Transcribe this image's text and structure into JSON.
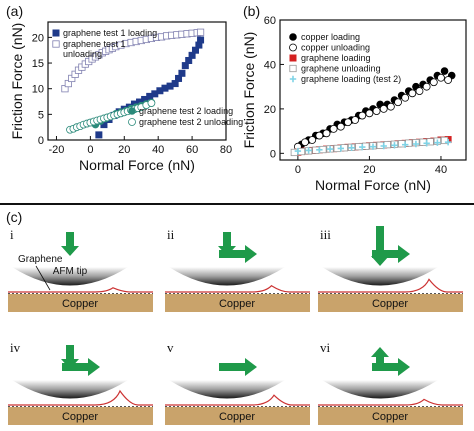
{
  "panel_labels": {
    "a": "(a)",
    "b": "(b)",
    "c": "(c)"
  },
  "colors": {
    "graphene_t1_fill": "#1f3a8a",
    "graphene_t1_open": "#8080b0",
    "graphene_t2_fill": "#2a8a7a",
    "graphene_t2_open": "#2a8a7a",
    "copper": "#000000",
    "graphene_red": "#d42020",
    "graphene_test2_cyan": "#7fd3e6",
    "arrow_green": "#1f9a4a",
    "copper_block": "#c9a36b",
    "graphene_line": "#cc3333"
  },
  "chart_data": [
    {
      "type": "scatter",
      "panel": "a",
      "xlabel": "Normal Force (nN)",
      "ylabel": "Friction Force (nN)",
      "xlim": [
        -25,
        80
      ],
      "ylim": [
        0,
        23
      ],
      "xticks": [
        "-20",
        "0",
        "20",
        "40",
        "60",
        "80"
      ],
      "yticks": [
        "0",
        "5",
        "10",
        "15",
        "20"
      ],
      "legend_top": [
        "graphene test 1 loading",
        "graphene test 1",
        "unloading"
      ],
      "legend_bottom": [
        "graphene test 2 loading",
        "graphene test 2 unloading"
      ],
      "series": [
        {
          "name": "graphene test 1 loading",
          "marker": "square-filled",
          "x": [
            5,
            8,
            11,
            14,
            17,
            20,
            23,
            26,
            29,
            32,
            35,
            38,
            41,
            44,
            47,
            50,
            52,
            54,
            56,
            58,
            60,
            62,
            64,
            65
          ],
          "y": [
            1,
            3,
            4,
            4.8,
            5.5,
            6,
            6.4,
            7,
            7.4,
            7.9,
            8.5,
            9,
            9.6,
            10.1,
            10.5,
            11,
            12,
            13,
            14.5,
            15.5,
            16.5,
            17.5,
            18.5,
            19.5
          ]
        },
        {
          "name": "graphene test 1 unloading",
          "marker": "square-open",
          "x": [
            -15,
            -13,
            -11,
            -9,
            -7,
            -5,
            -3,
            -1,
            1,
            3,
            5,
            7,
            9,
            11,
            13,
            15,
            18,
            21,
            24,
            27,
            30,
            33,
            36,
            39,
            42,
            45,
            48,
            51,
            54,
            57,
            60,
            63,
            65
          ],
          "y": [
            10,
            11,
            12,
            12.8,
            13.6,
            14.2,
            14.8,
            15.3,
            15.8,
            16.2,
            16.6,
            17,
            17.3,
            17.6,
            17.9,
            18.2,
            18.5,
            18.8,
            19,
            19.2,
            19.4,
            19.6,
            19.8,
            20,
            20.1,
            20.3,
            20.4,
            20.5,
            20.6,
            20.7,
            20.8,
            20.9,
            21
          ]
        },
        {
          "name": "graphene test 2 loading",
          "marker": "circle-filled",
          "x": [
            3,
            6,
            9,
            12,
            15,
            18,
            21,
            24,
            27,
            30,
            33,
            36
          ],
          "y": [
            3,
            3.7,
            4.2,
            4.6,
            5.1,
            5.4,
            5.7,
            6.1,
            6.4,
            6.7,
            7,
            7.3
          ]
        },
        {
          "name": "graphene test 2 unloading",
          "marker": "circle-open",
          "x": [
            -12,
            -10,
            -8,
            -6,
            -4,
            -2,
            0,
            2,
            4,
            6,
            8,
            10,
            12,
            14,
            16,
            18,
            20,
            22,
            24,
            26,
            28,
            30,
            33,
            36
          ],
          "y": [
            2,
            2.2,
            2.5,
            2.7,
            3,
            3.2,
            3.4,
            3.6,
            3.8,
            4,
            4.2,
            4.4,
            4.6,
            4.8,
            5,
            5.2,
            5.4,
            5.6,
            5.8,
            6,
            6.2,
            6.4,
            6.8,
            7.2
          ]
        }
      ]
    },
    {
      "type": "scatter",
      "panel": "b",
      "xlabel": "Normal Force (nN)",
      "ylabel": "Friction Force (nN)",
      "xlim": [
        -5,
        47
      ],
      "ylim": [
        -3,
        60
      ],
      "xticks": [
        "0",
        "20",
        "40"
      ],
      "yticks": [
        "0",
        "20",
        "40",
        "60"
      ],
      "legend": [
        "copper loading",
        "copper unloading",
        "graphene loading",
        "graphene unloading",
        "graphene loading (test 2)"
      ],
      "series": [
        {
          "name": "copper loading",
          "marker": "circle-filled",
          "x": [
            1,
            3,
            5,
            7,
            9,
            11,
            13,
            15,
            17,
            19,
            21,
            23,
            25,
            27,
            29,
            31,
            33,
            35,
            37,
            39,
            41,
            43
          ],
          "y": [
            4,
            6,
            8,
            9,
            11,
            13,
            14,
            15,
            17,
            19,
            20,
            22,
            22,
            24,
            26,
            28,
            30,
            31,
            33,
            35,
            37,
            35
          ]
        },
        {
          "name": "copper unloading",
          "marker": "circle-open",
          "x": [
            0,
            2,
            4,
            6,
            8,
            10,
            12,
            14,
            16,
            18,
            20,
            22,
            24,
            26,
            28,
            30,
            32,
            34,
            36,
            38,
            40,
            42
          ],
          "y": [
            3,
            5,
            6,
            8,
            9,
            11,
            12,
            14,
            15,
            17,
            18,
            19,
            20,
            21,
            23,
            25,
            27,
            28,
            30,
            32,
            34,
            33
          ]
        },
        {
          "name": "graphene loading",
          "marker": "square-filled",
          "x": [
            0,
            2,
            4,
            6,
            8,
            10,
            12,
            14,
            16,
            18,
            20,
            22,
            24,
            26,
            28,
            30,
            32,
            34,
            36,
            38,
            40,
            42
          ],
          "y": [
            0.5,
            1,
            1.3,
            1.6,
            1.9,
            2.1,
            2.4,
            2.7,
            2.9,
            3.1,
            3.4,
            3.6,
            3.8,
            4,
            4.3,
            4.5,
            4.8,
            5,
            5.3,
            5.5,
            6,
            6.2
          ]
        },
        {
          "name": "graphene unloading",
          "marker": "square-open",
          "x": [
            -1,
            1,
            3,
            5,
            7,
            9,
            11,
            13,
            15,
            17,
            19,
            21,
            23,
            25,
            27,
            29,
            31,
            33,
            35,
            37,
            39,
            41
          ],
          "y": [
            0.4,
            0.8,
            1.1,
            1.4,
            1.7,
            2,
            2.2,
            2.5,
            2.7,
            3,
            3.2,
            3.4,
            3.6,
            3.9,
            4.1,
            4.3,
            4.6,
            4.8,
            5,
            5.2,
            5.5,
            5.8
          ]
        },
        {
          "name": "graphene loading (test 2)",
          "marker": "cross",
          "x": [
            0,
            3,
            6,
            9,
            12,
            15,
            18,
            21,
            24,
            27,
            30,
            33,
            36,
            39,
            42
          ],
          "y": [
            1,
            1.3,
            1.6,
            1.9,
            2.2,
            2.5,
            2.8,
            3,
            3.3,
            3.6,
            3.9,
            4.2,
            4.5,
            4.8,
            5
          ]
        }
      ]
    }
  ],
  "diagram": {
    "graphene_label": "Graphene",
    "afm_tip_label": "AFM tip",
    "copper_label": "Copper",
    "steps": [
      {
        "id": "i",
        "label": "i",
        "arrow_down": true,
        "arrow_right": false,
        "arrow_up": false,
        "big_down": false,
        "ripple": 0.3,
        "ripple_side": "right"
      },
      {
        "id": "ii",
        "label": "ii",
        "arrow_down": true,
        "arrow_right": true,
        "arrow_up": false,
        "big_down": false,
        "ripple": 0.45,
        "ripple_side": "right"
      },
      {
        "id": "iii",
        "label": "iii",
        "arrow_down": true,
        "arrow_right": true,
        "arrow_up": false,
        "big_down": true,
        "ripple": 0.9,
        "ripple_side": "right"
      },
      {
        "id": "iv",
        "label": "iv",
        "arrow_down": true,
        "arrow_right": true,
        "arrow_up": false,
        "big_down": false,
        "ripple": 1.0,
        "ripple_side": "right"
      },
      {
        "id": "v",
        "label": "v",
        "arrow_down": false,
        "arrow_right": true,
        "arrow_up": false,
        "big_down": false,
        "ripple": 0.7,
        "ripple_side": "right"
      },
      {
        "id": "vi",
        "label": "vi",
        "arrow_down": false,
        "arrow_right": true,
        "arrow_up": true,
        "big_down": false,
        "ripple": 0.4,
        "ripple_side": "right"
      }
    ]
  }
}
